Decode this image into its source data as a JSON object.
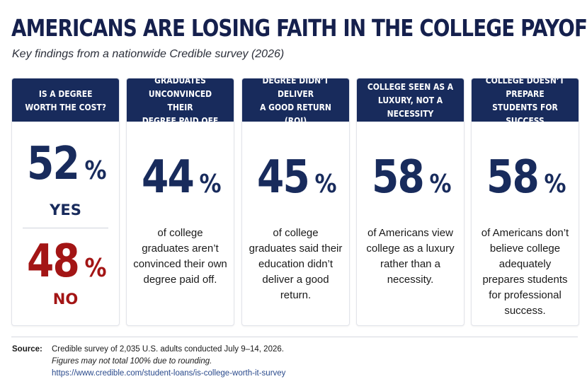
{
  "title": "AMERICANS ARE LOSING FAITH IN THE COLLEGE PAYOFF",
  "subtitle": "Key findings from a nationwide Credible survey (2026)",
  "colors": {
    "navy": "#182b5c",
    "red": "#a31515"
  },
  "chart_data": {
    "type": "table",
    "unit": "%",
    "cards": [
      {
        "header": "IS A DEGREE\nWORTH THE COST?",
        "results": [
          {
            "value": 52,
            "label": "YES"
          },
          {
            "value": 48,
            "label": "NO"
          }
        ]
      },
      {
        "header": "GRADUATES\nUNCONVINCED THEIR\nDEGREE PAID OFF",
        "value": 44,
        "description": "of college graduates aren’t convinced their own degree paid off."
      },
      {
        "header": "DEGREE DIDN’T DELIVER\nA GOOD RETURN (ROI)",
        "value": 45,
        "description": "of college graduates said their education didn’t deliver a good return."
      },
      {
        "header": "COLLEGE SEEN AS A\nLUXURY, NOT A NECESSITY",
        "value": 58,
        "description": "of Americans view college as a luxury rather than a necessity."
      },
      {
        "header": "COLLEGE DOESN’T PREPARE\nSTUDENTS FOR SUCCESS",
        "value": 58,
        "description": "of Americans don’t believe college adequately prepares students for professional success."
      }
    ]
  },
  "footer": {
    "source_label": "Source:",
    "source_text": "Credible survey of 2,035 U.S. adults conducted July 9–14, 2026.",
    "note": "Figures may not total 100% due to rounding.",
    "url": "https://www.credible.com/student-loans/is-college-worth-it-survey"
  }
}
